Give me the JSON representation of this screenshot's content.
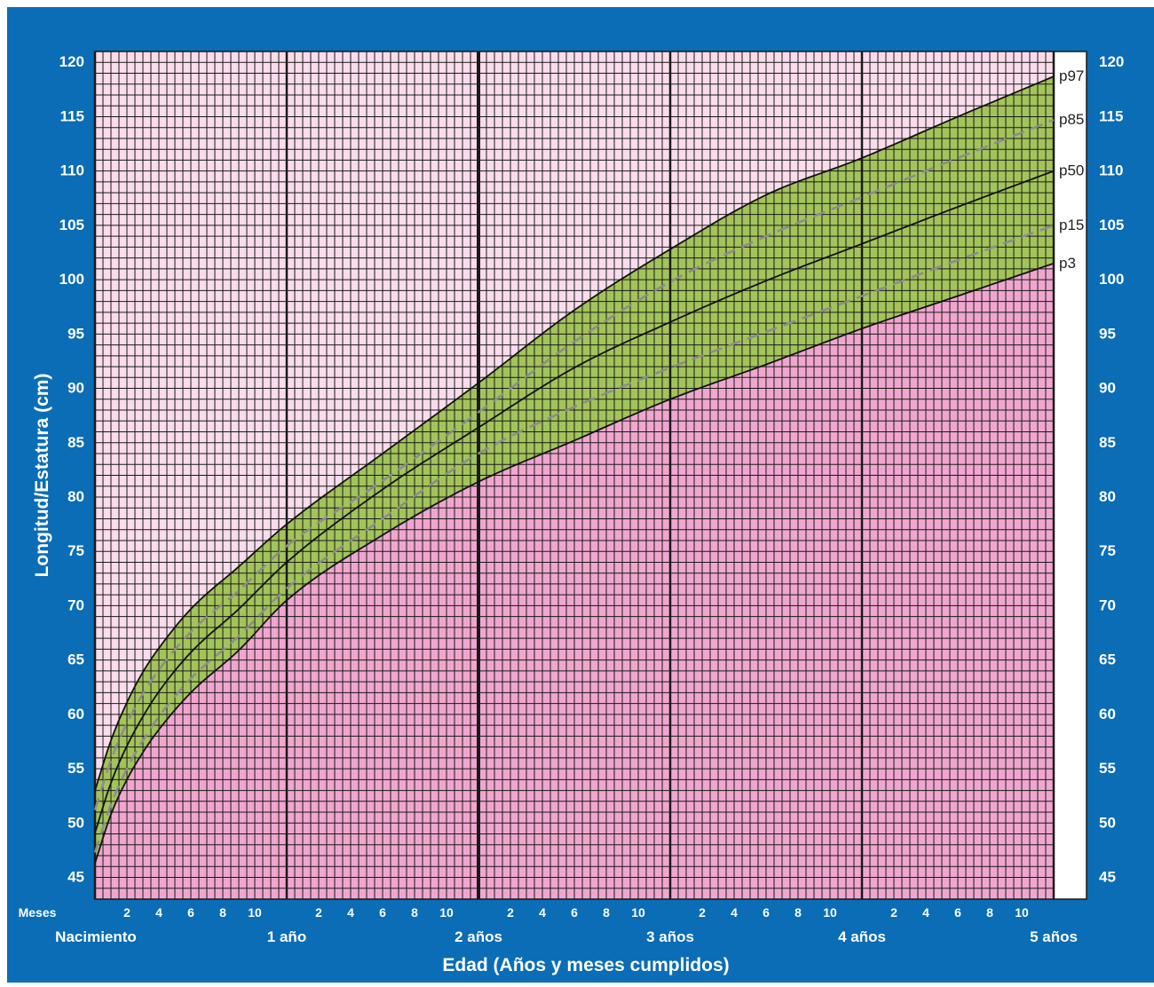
{
  "chart_data": {
    "type": "line",
    "ylabel": "Longitud/Estatura (cm)",
    "xlabel": "Edad (Años y meses cumplidos)",
    "months_label": "Meses",
    "ylim": [
      43,
      121
    ],
    "xlim": [
      0,
      60
    ],
    "yticks": [
      45,
      50,
      55,
      60,
      65,
      70,
      75,
      80,
      85,
      90,
      95,
      100,
      105,
      110,
      115,
      120
    ],
    "month_ticks": [
      "2",
      "4",
      "6",
      "8",
      "10"
    ],
    "year_labels": [
      "Nacimiento",
      "1 año",
      "2 años",
      "3 años",
      "4 años",
      "5 años"
    ],
    "grid": true,
    "x_months": [
      0,
      1,
      2,
      3,
      4,
      6,
      9,
      12,
      18,
      24,
      30,
      36,
      42,
      48,
      54,
      60
    ],
    "series": [
      {
        "name": "p97",
        "values": [
          53.0,
          57.6,
          61.1,
          63.9,
          66.1,
          69.7,
          73.6,
          77.5,
          84.0,
          90.5,
          97.2,
          102.8,
          107.8,
          111.2,
          115.0,
          118.7
        ]
      },
      {
        "name": "p85",
        "values": [
          51.2,
          55.8,
          59.2,
          61.9,
          64.1,
          67.6,
          71.4,
          75.5,
          81.5,
          87.8,
          94.3,
          99.8,
          104.0,
          107.6,
          111.2,
          114.7
        ]
      },
      {
        "name": "p50",
        "values": [
          49.1,
          53.7,
          57.1,
          59.8,
          62.1,
          65.7,
          69.7,
          74.0,
          80.7,
          86.4,
          91.9,
          96.1,
          99.9,
          103.3,
          106.7,
          110.0
        ]
      },
      {
        "name": "p15",
        "values": [
          47.3,
          51.7,
          55.0,
          57.6,
          59.8,
          63.3,
          67.2,
          71.6,
          78.0,
          84.0,
          88.3,
          91.9,
          95.2,
          98.5,
          101.8,
          105.0
        ]
      },
      {
        "name": "p3",
        "values": [
          46.3,
          50.8,
          54.0,
          56.5,
          58.6,
          62.0,
          65.9,
          70.5,
          76.5,
          81.4,
          85.2,
          89.0,
          92.2,
          95.5,
          98.5,
          101.5
        ]
      }
    ],
    "colors": {
      "frame": "#0a6db6",
      "pink_dark": "#f0a6cf",
      "pink_light": "#fbdcec",
      "band": "#a3c45a",
      "grid": "#1a1a1a",
      "curve": "#111111",
      "dashed": "#8c8c8c"
    }
  }
}
